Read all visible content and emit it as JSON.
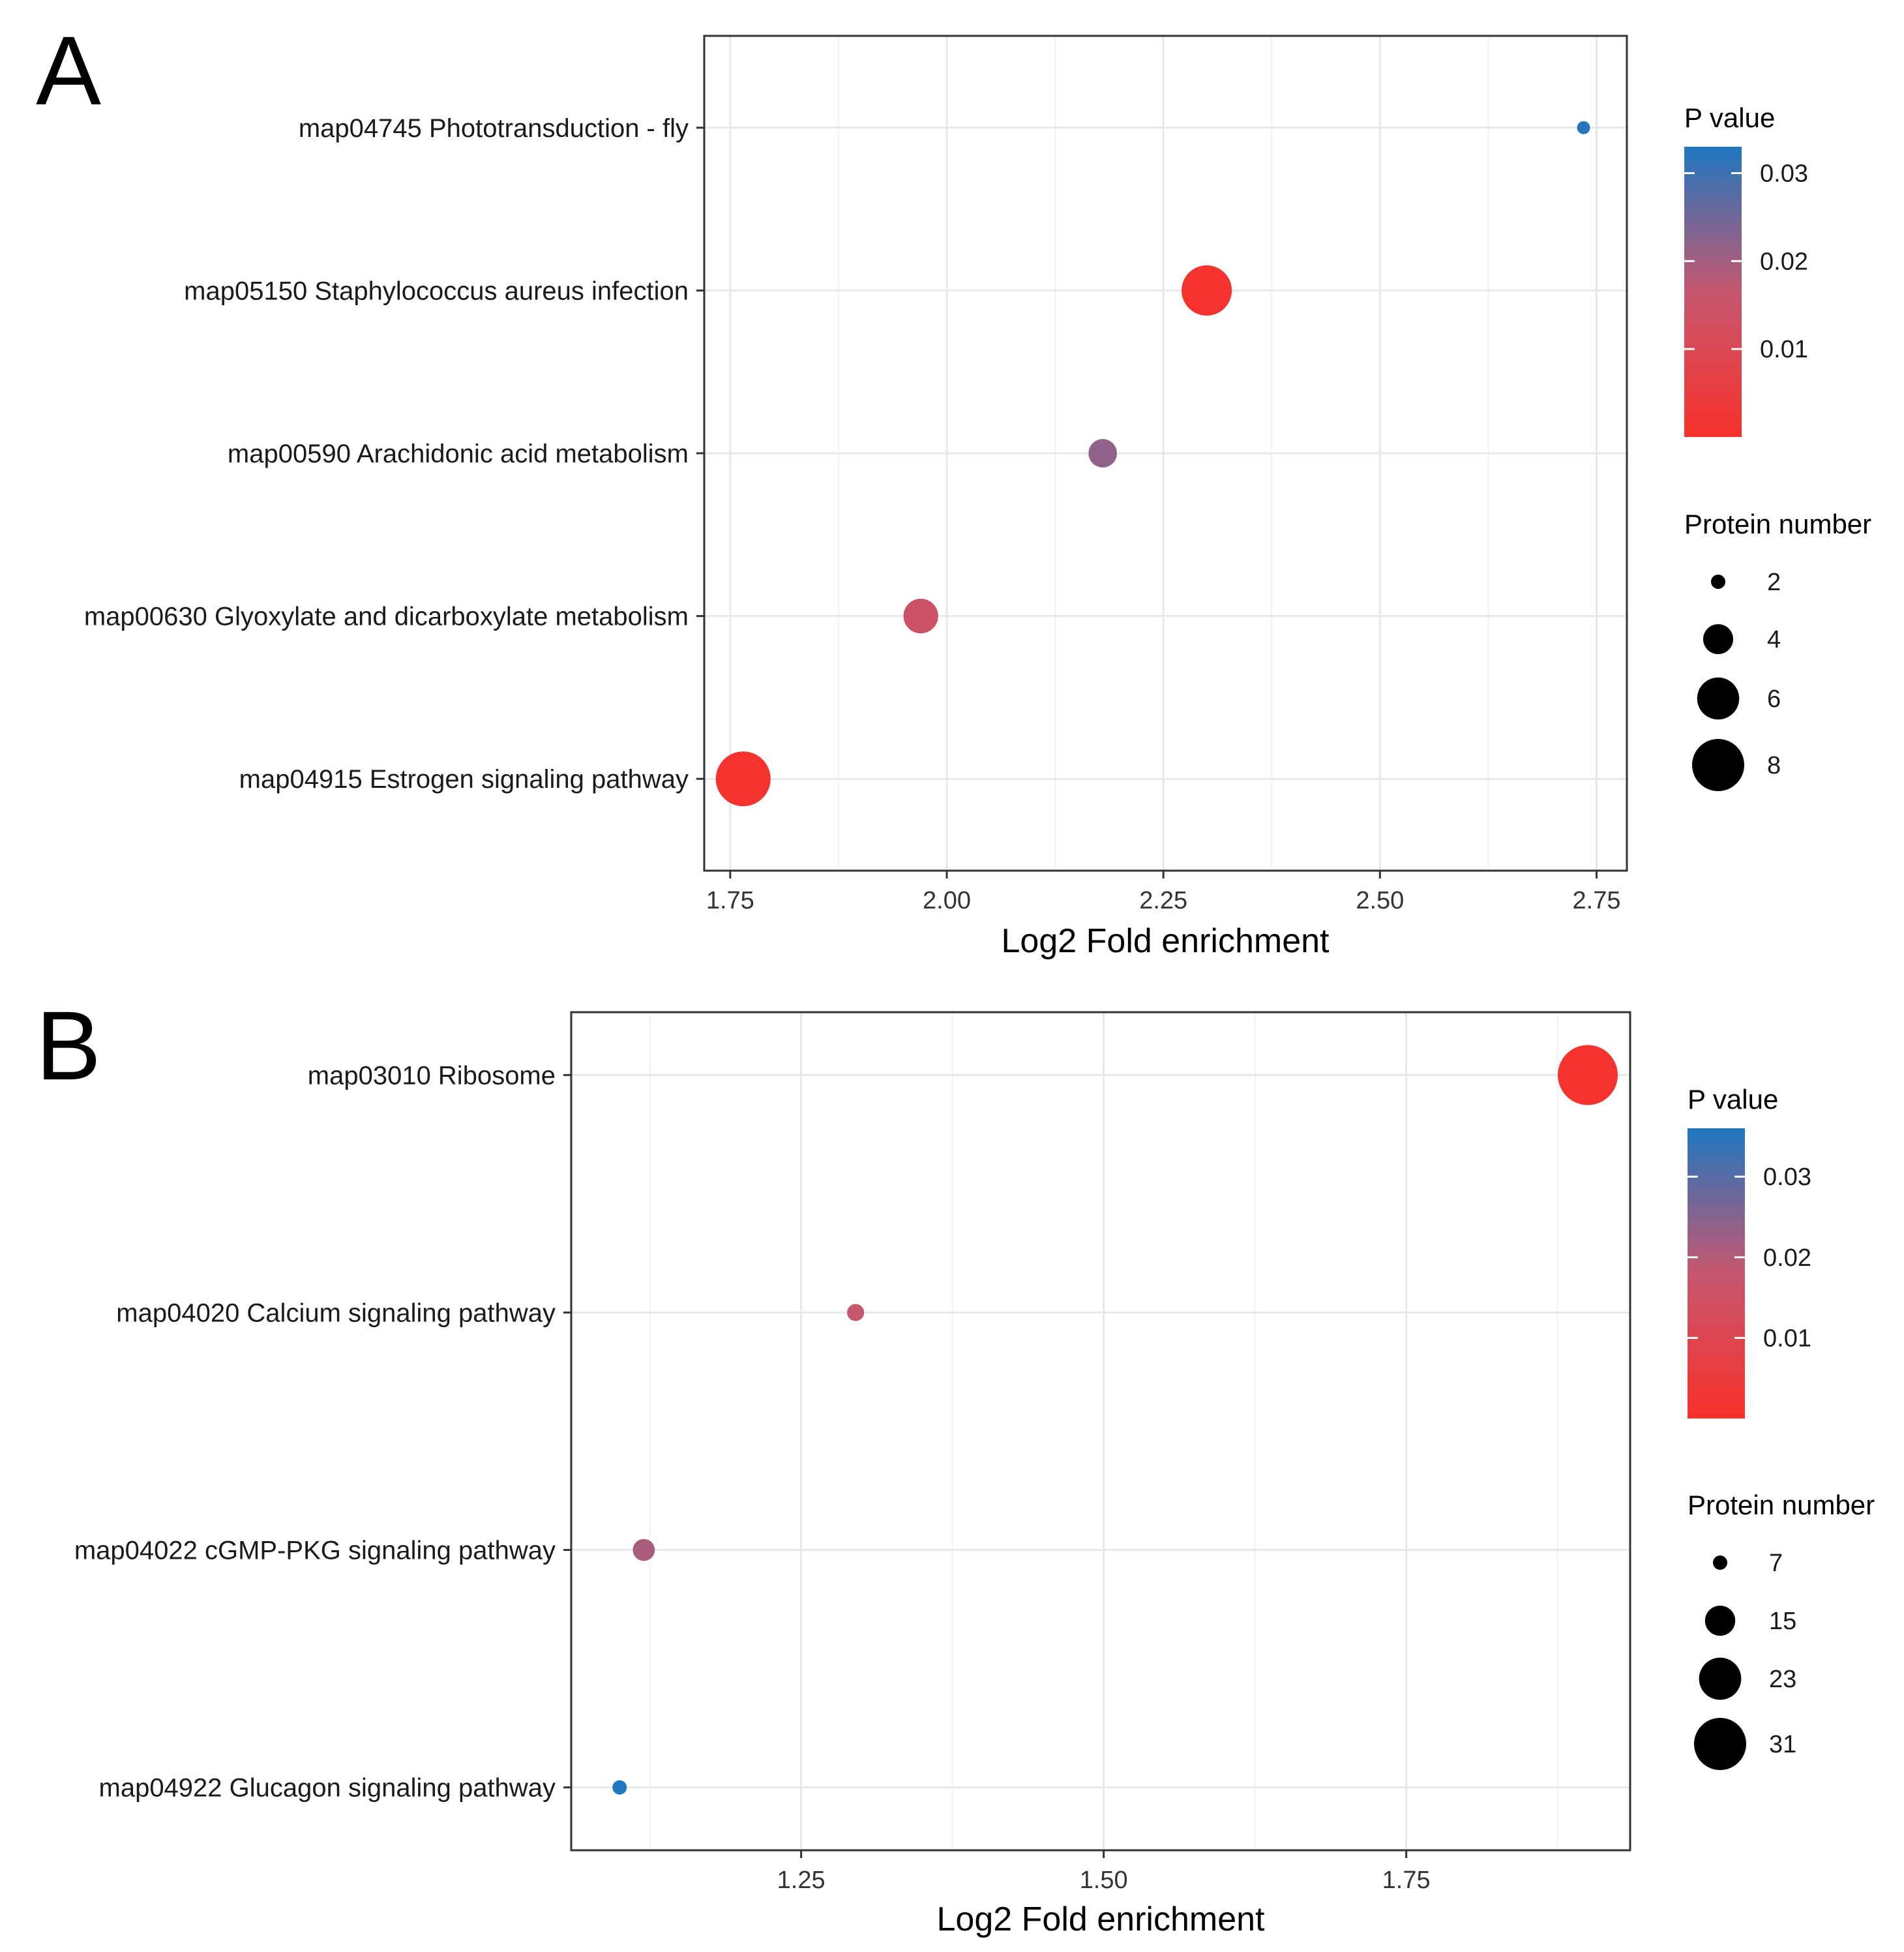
{
  "chart_data": [
    {
      "panel": "A",
      "type": "scatter",
      "categories": [
        "map04745 Phototransduction - fly",
        "map05150 Staphylococcus aureus infection",
        "map00590 Arachidonic acid metabolism",
        "map00630 Glyoxylate and dicarboxylate metabolism",
        "map04915 Estrogen signaling pathway"
      ],
      "x": [
        2.735,
        2.3,
        2.18,
        1.97,
        1.765
      ],
      "size": [
        2,
        8,
        4,
        5,
        9
      ],
      "pvalue": [
        0.032,
        0.001,
        0.022,
        0.014,
        0.001
      ],
      "xlabel": "Log2 Fold enrichment",
      "xlim": [
        1.72,
        2.785
      ],
      "xticks": [
        "1.75",
        "2.00",
        "2.25",
        "2.50",
        "2.75"
      ],
      "xtick_values": [
        1.75,
        2.0,
        2.25,
        2.5,
        2.75
      ],
      "minor_xticks": [
        1.875,
        2.125,
        2.375,
        2.625
      ],
      "color_legend": {
        "title": "P value",
        "range": [
          0.0,
          0.033
        ],
        "ticks": [
          "0.03",
          "0.02",
          "0.01"
        ],
        "tick_values": [
          0.03,
          0.02,
          0.01
        ]
      },
      "size_legend": {
        "title": "Protein number",
        "labels": [
          "2",
          "4",
          "6",
          "8"
        ],
        "values": [
          2,
          4,
          6,
          8
        ],
        "range": [
          2,
          9
        ]
      },
      "colors": {
        "low": "#f8312a",
        "mid": "#c5576e",
        "high": "#1f77c0"
      }
    },
    {
      "panel": "B",
      "type": "scatter",
      "categories": [
        "map03010 Ribosome",
        "map04020 Calcium signaling pathway",
        "map04022 cGMP-PKG signaling pathway",
        "map04922 Glucagon signaling pathway"
      ],
      "x": [
        1.9,
        1.295,
        1.12,
        1.1
      ],
      "size": [
        33,
        7,
        9,
        6
      ],
      "pvalue": [
        0.001,
        0.018,
        0.021,
        0.036
      ],
      "xlabel": "Log2 Fold enrichment",
      "xlim": [
        1.06,
        1.935
      ],
      "xticks": [
        "1.25",
        "1.50",
        "1.75"
      ],
      "xtick_values": [
        1.25,
        1.5,
        1.75
      ],
      "minor_xticks": [
        1.125,
        1.375,
        1.625,
        1.875
      ],
      "color_legend": {
        "title": "P value",
        "range": [
          0.0,
          0.036
        ],
        "ticks": [
          "0.03",
          "0.02",
          "0.01"
        ],
        "tick_values": [
          0.03,
          0.02,
          0.01
        ]
      },
      "size_legend": {
        "title": "Protein number",
        "labels": [
          "7",
          "15",
          "23",
          "31"
        ],
        "values": [
          7,
          15,
          23,
          31
        ],
        "range": [
          6,
          33
        ]
      },
      "colors": {
        "low": "#f8312a",
        "mid": "#c5576e",
        "high": "#1f77c0"
      }
    }
  ]
}
